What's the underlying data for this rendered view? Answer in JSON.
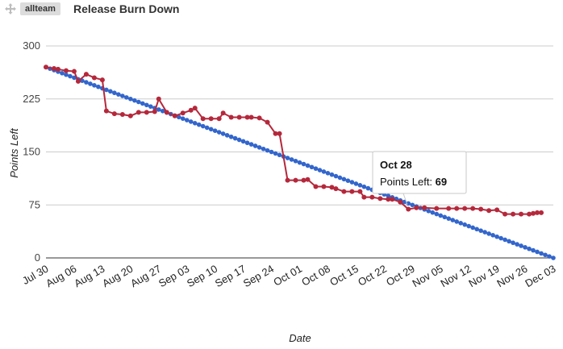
{
  "header": {
    "team_badge": "allteam",
    "title": "Release Burn Down",
    "drag_handle_icon": "move-arrows-icon"
  },
  "tooltip": {
    "date": "Oct 28",
    "label": "Points Left: ",
    "value": "69"
  },
  "colors": {
    "ideal": "#3366cc",
    "actual": "#b5283b",
    "grid": "#cccccc",
    "axis": "#333333"
  },
  "chart_data": {
    "type": "line",
    "xlabel": "Date",
    "ylabel": "Points Left",
    "x_range": [
      "2012-07-30",
      "2012-12-03"
    ],
    "ylim": [
      0,
      300
    ],
    "yticks": [
      0,
      75,
      150,
      225,
      300
    ],
    "x_tick_labels": [
      "Jul 30",
      "Aug 06",
      "Aug 13",
      "Aug 20",
      "Aug 27",
      "Sep 03",
      "Sep 10",
      "Sep 17",
      "Sep 24",
      "Oct 01",
      "Oct 08",
      "Oct 15",
      "Oct 22",
      "Oct 29",
      "Nov 05",
      "Nov 12",
      "Nov 19",
      "Nov 26",
      "Dec 03"
    ],
    "grid": true,
    "legend": "none",
    "series": [
      {
        "role": "ideal",
        "x": [
          "2012-07-30",
          "2012-12-03"
        ],
        "values": [
          270,
          0
        ],
        "marker_interval_days": 1
      },
      {
        "role": "actual",
        "x": [
          "2012-07-30",
          "2012-08-01",
          "2012-08-02",
          "2012-08-04",
          "2012-08-06",
          "2012-08-07",
          "2012-08-09",
          "2012-08-11",
          "2012-08-13",
          "2012-08-14",
          "2012-08-16",
          "2012-08-18",
          "2012-08-20",
          "2012-08-22",
          "2012-08-24",
          "2012-08-26",
          "2012-08-27",
          "2012-08-29",
          "2012-08-31",
          "2012-09-02",
          "2012-09-04",
          "2012-09-05",
          "2012-09-07",
          "2012-09-09",
          "2012-09-11",
          "2012-09-12",
          "2012-09-14",
          "2012-09-16",
          "2012-09-18",
          "2012-09-19",
          "2012-09-21",
          "2012-09-23",
          "2012-09-25",
          "2012-09-26",
          "2012-09-28",
          "2012-09-30",
          "2012-10-02",
          "2012-10-03",
          "2012-10-05",
          "2012-10-07",
          "2012-10-09",
          "2012-10-10",
          "2012-10-12",
          "2012-10-14",
          "2012-10-16",
          "2012-10-17",
          "2012-10-19",
          "2012-10-21",
          "2012-10-23",
          "2012-10-24",
          "2012-10-26",
          "2012-10-28",
          "2012-10-30",
          "2012-11-01",
          "2012-11-04",
          "2012-11-07",
          "2012-11-09",
          "2012-11-11",
          "2012-11-13",
          "2012-11-15",
          "2012-11-17",
          "2012-11-19",
          "2012-11-21",
          "2012-11-23",
          "2012-11-25",
          "2012-11-27",
          "2012-11-28",
          "2012-11-29",
          "2012-11-30"
        ],
        "values": [
          270,
          268,
          267,
          265,
          264,
          250,
          260,
          255,
          252,
          208,
          204,
          203,
          201,
          206,
          206,
          207,
          225,
          206,
          201,
          205,
          209,
          212,
          197,
          197,
          197,
          205,
          199,
          199,
          199,
          199,
          198,
          192,
          176,
          176,
          110,
          110,
          110,
          111,
          101,
          101,
          100,
          98,
          94,
          94,
          94,
          86,
          86,
          84,
          83,
          83,
          79,
          69,
          71,
          71,
          70,
          70,
          70,
          70,
          70,
          69,
          67,
          68,
          62,
          62,
          62,
          62,
          63,
          64,
          64
        ]
      }
    ]
  }
}
